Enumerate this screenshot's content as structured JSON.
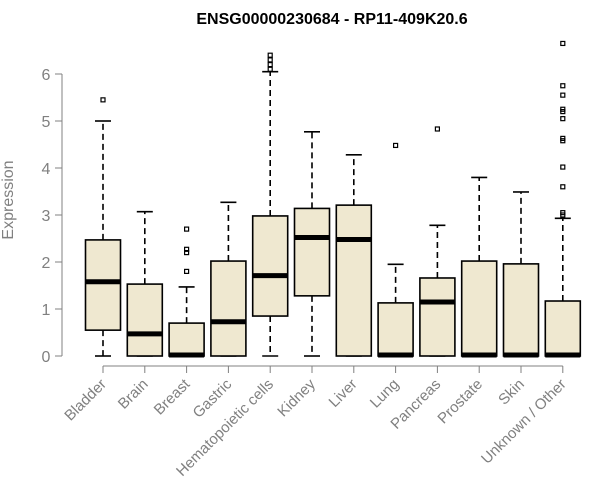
{
  "chart_data": {
    "type": "box",
    "title": "ENSG00000230684 - RP11-409K20.6",
    "xlabel": "",
    "ylabel": "Expression",
    "ylim": [
      0,
      6.7
    ],
    "yticks": [
      0,
      1,
      2,
      3,
      4,
      5,
      6
    ],
    "grid": false,
    "box_color": "#efe8d0",
    "categories": [
      "Bladder",
      "Brain",
      "Breast",
      "Gastric",
      "Hematopoietic cells",
      "Kidney",
      "Liver",
      "Lung",
      "Pancreas",
      "Prostate",
      "Skin",
      "Unknown / Other"
    ],
    "boxes": [
      {
        "min": 0.0,
        "q1": 0.55,
        "median": 1.58,
        "q3": 2.47,
        "max": 5.0,
        "outliers": [
          5.45
        ]
      },
      {
        "min": 0.0,
        "q1": 0.0,
        "median": 0.47,
        "q3": 1.53,
        "max": 3.07,
        "outliers": []
      },
      {
        "min": 0.0,
        "q1": 0.0,
        "median": 0.02,
        "q3": 0.7,
        "max": 1.47,
        "outliers": [
          1.8,
          2.2,
          2.27,
          2.7
        ]
      },
      {
        "min": 0.0,
        "q1": 0.0,
        "median": 0.73,
        "q3": 2.02,
        "max": 3.27,
        "outliers": []
      },
      {
        "min": 0.0,
        "q1": 0.85,
        "median": 1.71,
        "q3": 2.98,
        "max": 6.05,
        "outliers": [
          6.1,
          6.2,
          6.3,
          6.4
        ]
      },
      {
        "min": 0.0,
        "q1": 1.28,
        "median": 2.52,
        "q3": 3.14,
        "max": 4.77,
        "outliers": []
      },
      {
        "min": 0.0,
        "q1": 0.0,
        "median": 2.48,
        "q3": 3.21,
        "max": 4.28,
        "outliers": []
      },
      {
        "min": 0.0,
        "q1": 0.0,
        "median": 0.02,
        "q3": 1.13,
        "max": 1.95,
        "outliers": [
          4.48
        ]
      },
      {
        "min": 0.0,
        "q1": 0.0,
        "median": 1.15,
        "q3": 1.66,
        "max": 2.78,
        "outliers": [
          4.83
        ]
      },
      {
        "min": 0.0,
        "q1": 0.0,
        "median": 0.02,
        "q3": 2.02,
        "max": 3.8,
        "outliers": []
      },
      {
        "min": 0.0,
        "q1": 0.0,
        "median": 0.02,
        "q3": 1.96,
        "max": 3.49,
        "outliers": []
      },
      {
        "min": 0.0,
        "q1": 0.0,
        "median": 0.02,
        "q3": 1.17,
        "max": 2.93,
        "outliers": [
          3.0,
          3.05,
          3.6,
          4.02,
          4.58,
          4.63,
          5.05,
          5.2,
          5.25,
          5.55,
          5.75,
          6.65
        ]
      }
    ]
  }
}
